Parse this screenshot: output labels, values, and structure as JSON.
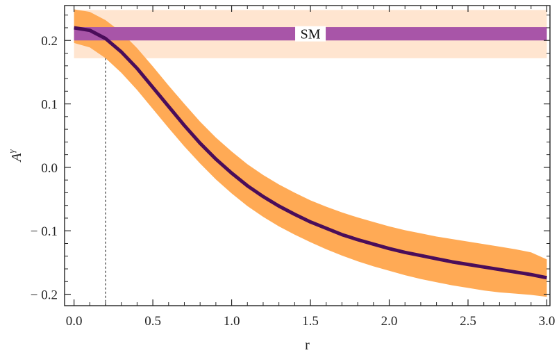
{
  "chart_data": {
    "type": "line",
    "title": "",
    "xlabel": "r",
    "ylabel": "A^γ",
    "ylabel_base": "A",
    "ylabel_sup": "γ",
    "xlim": [
      -0.06,
      3.02
    ],
    "ylim": [
      -0.218,
      0.255
    ],
    "x_ticks": [
      0.0,
      0.5,
      1.0,
      1.5,
      2.0,
      2.5,
      3.0
    ],
    "x_tick_labels": [
      "0.0",
      "0.5",
      "1.0",
      "1.5",
      "2.0",
      "2.5",
      "3.0"
    ],
    "y_ticks": [
      -0.2,
      -0.1,
      0.0,
      0.1,
      0.2
    ],
    "y_tick_labels": [
      "− 0.2",
      "− 0.1",
      "0.0",
      "0.1",
      "0.2"
    ],
    "grid": false,
    "series": [
      {
        "x": [
          0.0,
          0.1,
          0.2,
          0.3,
          0.4,
          0.5,
          0.6,
          0.7,
          0.8,
          0.9,
          1.0,
          1.1,
          1.2,
          1.3,
          1.4,
          1.5,
          1.6,
          1.7,
          1.8,
          1.9,
          2.0,
          2.1,
          2.2,
          2.3,
          2.4,
          2.5,
          2.6,
          2.7,
          2.8,
          2.9,
          3.0
        ],
        "y": [
          0.22,
          0.216,
          0.203,
          0.182,
          0.156,
          0.126,
          0.096,
          0.066,
          0.038,
          0.013,
          -0.009,
          -0.029,
          -0.046,
          -0.061,
          -0.074,
          -0.086,
          -0.096,
          -0.106,
          -0.114,
          -0.121,
          -0.128,
          -0.134,
          -0.139,
          -0.144,
          -0.149,
          -0.153,
          -0.157,
          -0.161,
          -0.165,
          -0.169,
          -0.174
        ],
        "lower": [
          0.196,
          0.189,
          0.172,
          0.149,
          0.122,
          0.092,
          0.062,
          0.033,
          0.006,
          -0.019,
          -0.041,
          -0.061,
          -0.078,
          -0.093,
          -0.106,
          -0.118,
          -0.129,
          -0.139,
          -0.148,
          -0.156,
          -0.163,
          -0.17,
          -0.176,
          -0.181,
          -0.186,
          -0.19,
          -0.194,
          -0.197,
          -0.199,
          -0.201,
          -0.204
        ],
        "upper": [
          0.249,
          0.245,
          0.232,
          0.213,
          0.188,
          0.159,
          0.129,
          0.1,
          0.072,
          0.047,
          0.025,
          0.005,
          -0.012,
          -0.027,
          -0.04,
          -0.052,
          -0.062,
          -0.071,
          -0.079,
          -0.086,
          -0.093,
          -0.099,
          -0.104,
          -0.109,
          -0.113,
          -0.117,
          -0.121,
          -0.125,
          -0.129,
          -0.134,
          -0.145
        ],
        "line_color": "#4a0d5a",
        "band_color": "#ffaa55"
      }
    ],
    "sm_band": {
      "label": "SM",
      "inner": [
        0.2,
        0.221
      ],
      "outer": [
        0.172,
        0.248
      ],
      "inner_color": "#a855a8",
      "outer_color": "#ffe5d0"
    },
    "reference_line": {
      "x": 0.2,
      "style": "dotted",
      "color": "#555555"
    }
  }
}
